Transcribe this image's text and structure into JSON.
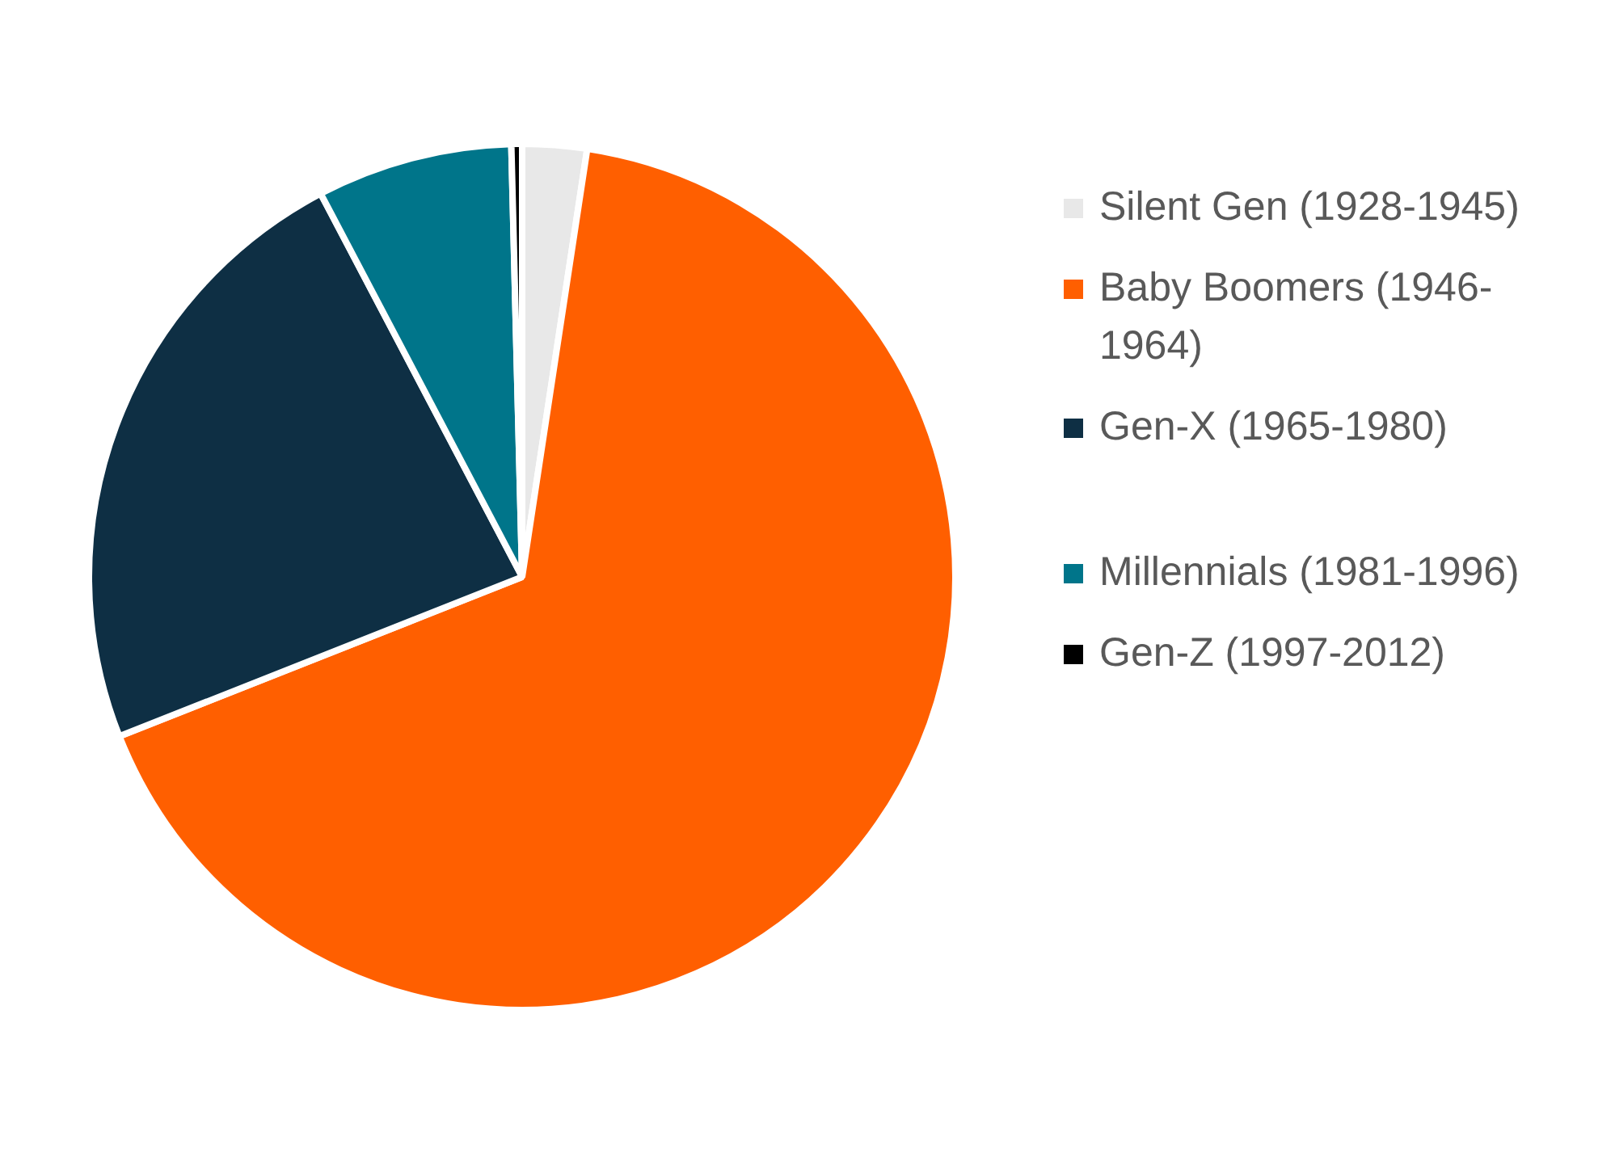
{
  "chart_data": {
    "type": "pie",
    "categories": [
      "Silent Gen (1928-1945)",
      "Baby Boomers (1946-1964)",
      "Gen-X (1965-1980)",
      "Millennials (1981-1996)",
      "Gen-Z (1997-2012)"
    ],
    "values": [
      2.4,
      66.6,
      23.3,
      7.3,
      0.4
    ],
    "colors": [
      "#e8e8e8",
      "#ff5f00",
      "#0e2f44",
      "#00758a",
      "#000000"
    ],
    "legend": "right"
  }
}
